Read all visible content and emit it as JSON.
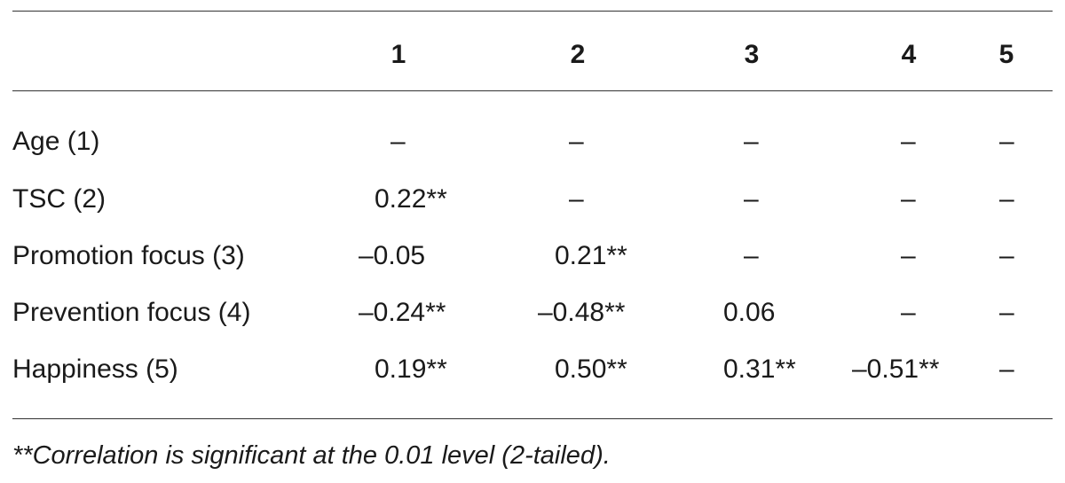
{
  "table": {
    "columns": [
      "1",
      "2",
      "3",
      "4",
      "5"
    ],
    "rows": [
      {
        "label": "Age (1)",
        "cells": [
          "–",
          "–",
          "–",
          "–",
          "–"
        ]
      },
      {
        "label": "TSC (2)",
        "cells": [
          "0.22**",
          "–",
          "–",
          "–",
          "–"
        ]
      },
      {
        "label": "Promotion focus (3)",
        "cells": [
          "–0.05",
          "0.21**",
          "–",
          "–",
          "–"
        ]
      },
      {
        "label": "Prevention focus (4)",
        "cells": [
          "–0.24**",
          "–0.48**",
          "0.06",
          "–",
          "–"
        ]
      },
      {
        "label": "Happiness (5)",
        "cells": [
          "0.19**",
          "0.50**",
          "0.31**",
          "–0.51**",
          "–"
        ]
      }
    ]
  },
  "footnote": "**Correlation is significant at the 0.01 level (2-tailed)."
}
